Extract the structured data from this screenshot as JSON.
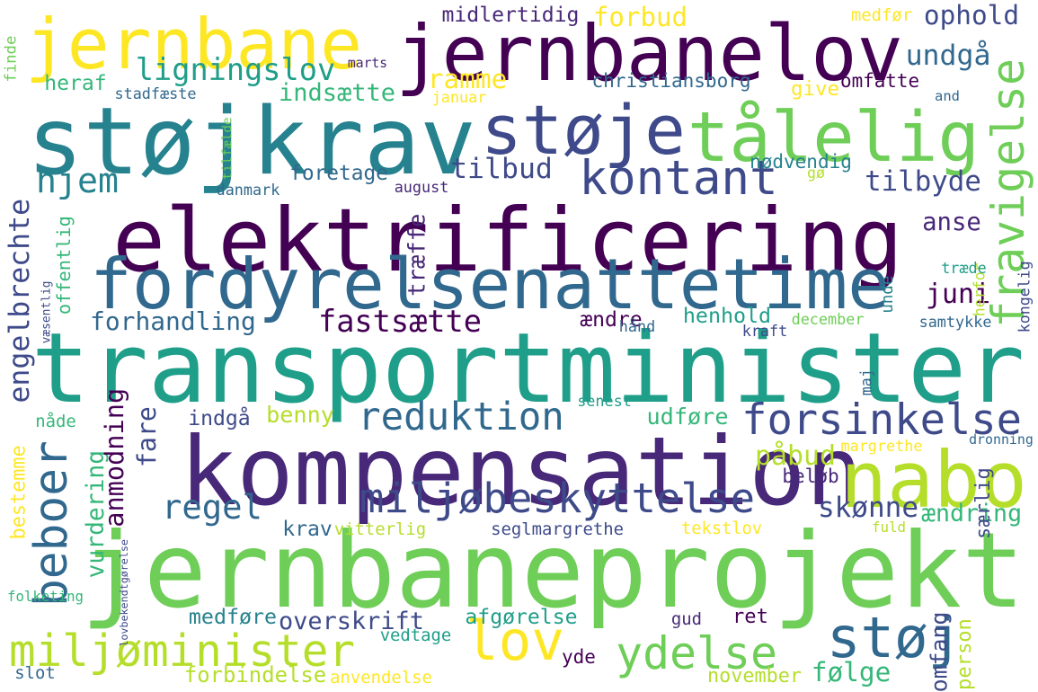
{
  "palette": {
    "p1": "#440154",
    "p2": "#482878",
    "p3": "#3e4a89",
    "p4": "#31688e",
    "p5": "#26828e",
    "p6": "#1f9e89",
    "p7": "#35b779",
    "p8": "#6ece58",
    "p9": "#b5de2b",
    "p10": "#fde725"
  },
  "words": [
    {
      "text": "transportminister",
      "color": "#1f9e89"
    },
    {
      "text": "jernbaneprojekt",
      "color": "#6ece58"
    },
    {
      "text": "elektrificering",
      "color": "#440154"
    },
    {
      "text": "kompensation",
      "color": "#482878"
    },
    {
      "text": "støjkrav",
      "color": "#26828e"
    },
    {
      "text": "fordyrelsenattetime",
      "color": "#31688e"
    },
    {
      "text": "jernbanelov",
      "color": "#440154"
    },
    {
      "text": "jernbane",
      "color": "#fde725"
    },
    {
      "text": "tålelig",
      "color": "#6ece58"
    },
    {
      "text": "støje",
      "color": "#3e4a89"
    },
    {
      "text": "nabo",
      "color": "#b5de2b"
    },
    {
      "text": "lov",
      "color": "#fde725"
    },
    {
      "text": "støj",
      "color": "#31688e"
    },
    {
      "text": "miljøbeskyttelse",
      "color": "#3e4a89"
    },
    {
      "text": "miljøminister",
      "color": "#b5de2b"
    },
    {
      "text": "ydelse",
      "color": "#6ece58"
    },
    {
      "text": "forsinkelse",
      "color": "#3e4a89"
    },
    {
      "text": "reduktion",
      "color": "#31688e"
    },
    {
      "text": "regel",
      "color": "#31688e"
    },
    {
      "text": "fravigelse",
      "color": "#6ece58"
    },
    {
      "text": "kontant",
      "color": "#3e4a89"
    },
    {
      "text": "beboer",
      "color": "#31688e"
    },
    {
      "text": "hjem",
      "color": "#26828e"
    },
    {
      "text": "ligningslov",
      "color": "#1f9e89"
    },
    {
      "text": "overskrift",
      "color": "#3e4a89"
    },
    {
      "text": "fastsætte",
      "color": "#440154"
    },
    {
      "text": "tilbud",
      "color": "#3e4a89"
    },
    {
      "text": "tilbyde",
      "color": "#3e4a89"
    },
    {
      "text": "juni",
      "color": "#440154"
    },
    {
      "text": "skønne",
      "color": "#3e4a89"
    },
    {
      "text": "ændring",
      "color": "#35b779"
    },
    {
      "text": "engelbrechte",
      "color": "#3e4a89"
    },
    {
      "text": "forhandling",
      "color": "#31688e"
    },
    {
      "text": "ophold",
      "color": "#3e4a89"
    },
    {
      "text": "undgå",
      "color": "#31688e"
    },
    {
      "text": "ramme",
      "color": "#fde725"
    },
    {
      "text": "forbud",
      "color": "#fde725"
    },
    {
      "text": "indsætte",
      "color": "#35b779"
    },
    {
      "text": "påbud",
      "color": "#b5de2b"
    },
    {
      "text": "benny",
      "color": "#b5de2b"
    },
    {
      "text": "fare",
      "color": "#3e4a89"
    },
    {
      "text": "vurdering",
      "color": "#35b779"
    },
    {
      "text": "anmodning",
      "color": "#440154"
    },
    {
      "text": "forbindelse",
      "color": "#b5de2b"
    },
    {
      "text": "følge",
      "color": "#35b779"
    },
    {
      "text": "anse",
      "color": "#482878"
    },
    {
      "text": "udføre",
      "color": "#35b779"
    },
    {
      "text": "henhold",
      "color": "#1f9e89"
    },
    {
      "text": "medføre",
      "color": "#26828e"
    },
    {
      "text": "afgørelse",
      "color": "#1f9e89"
    },
    {
      "text": "krav",
      "color": "#31688e"
    },
    {
      "text": "væsentlig",
      "color": "#3e4a89"
    },
    {
      "text": "foretage",
      "color": "#31688e"
    },
    {
      "text": "ændre",
      "color": "#440154"
    },
    {
      "text": "indgå",
      "color": "#3e4a89"
    },
    {
      "text": "beløb",
      "color": "#482878"
    },
    {
      "text": "ret",
      "color": "#440154"
    },
    {
      "text": "nødvendig",
      "color": "#26828e"
    },
    {
      "text": "midlertidig",
      "color": "#482878"
    },
    {
      "text": "christiansborg",
      "color": "#31688e"
    },
    {
      "text": "give",
      "color": "#fde725"
    },
    {
      "text": "omfatte",
      "color": "#440154"
    },
    {
      "text": "heraf",
      "color": "#35b779"
    },
    {
      "text": "offentlig",
      "color": "#35b779"
    },
    {
      "text": "omfang",
      "color": "#3e4a89"
    },
    {
      "text": "person",
      "color": "#b5de2b"
    },
    {
      "text": "yde",
      "color": "#440154"
    },
    {
      "text": "november",
      "color": "#b5de2b"
    },
    {
      "text": "medfør",
      "color": "#fde725"
    },
    {
      "text": "vitterlig",
      "color": "#b5de2b"
    },
    {
      "text": "seglmargrethe",
      "color": "#3e4a89"
    },
    {
      "text": "tekstlov",
      "color": "#fde725"
    },
    {
      "text": "bestemme",
      "color": "#fde725"
    },
    {
      "text": "folketing",
      "color": "#35b779"
    },
    {
      "text": "lovbekendtgørelse",
      "color": "#3e4a89"
    },
    {
      "text": "træffe",
      "color": "#482878"
    },
    {
      "text": "tilfælde",
      "color": "#6ece58"
    },
    {
      "text": "dronning",
      "color": "#31688e"
    },
    {
      "text": "særlig",
      "color": "#3e4a89"
    },
    {
      "text": "margrethe",
      "color": "#fde725"
    },
    {
      "text": "senest",
      "color": "#1f9e89"
    },
    {
      "text": "vedtage",
      "color": "#1f9e89"
    },
    {
      "text": "anvendelse",
      "color": "#fde725"
    },
    {
      "text": "slot",
      "color": "#31688e"
    },
    {
      "text": "fuld",
      "color": "#b5de2b"
    },
    {
      "text": "gud",
      "color": "#482878"
    },
    {
      "text": "samtykke",
      "color": "#31688e"
    },
    {
      "text": "december",
      "color": "#6ece58"
    },
    {
      "text": "kraft",
      "color": "#3e4a89"
    },
    {
      "text": "hånd",
      "color": "#31688e"
    },
    {
      "text": "kongelig",
      "color": "#3e4a89"
    },
    {
      "text": "herfor",
      "color": "#b5de2b"
    },
    {
      "text": "træde",
      "color": "#1f9e89"
    },
    {
      "text": "unde",
      "color": "#26828e"
    },
    {
      "text": "maj",
      "color": "#31688e"
    },
    {
      "text": "nåde",
      "color": "#35b779"
    },
    {
      "text": "august",
      "color": "#482878"
    },
    {
      "text": "danmark",
      "color": "#31688e"
    },
    {
      "text": "gø",
      "color": "#b5de2b"
    },
    {
      "text": "and",
      "color": "#31688e"
    },
    {
      "text": "stadfæste",
      "color": "#31688e"
    },
    {
      "text": "januar",
      "color": "#fde725"
    },
    {
      "text": "marts",
      "color": "#482878"
    },
    {
      "text": "finde",
      "color": "#6ece58"
    }
  ]
}
